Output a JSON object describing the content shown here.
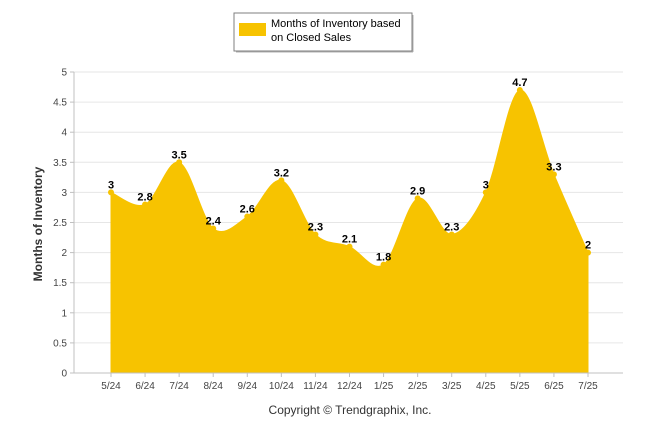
{
  "chart_data": {
    "type": "area",
    "categories": [
      "5/24",
      "6/24",
      "7/24",
      "8/24",
      "9/24",
      "10/24",
      "11/24",
      "12/24",
      "1/25",
      "2/25",
      "3/25",
      "4/25",
      "5/25",
      "6/25",
      "7/25"
    ],
    "series": [
      {
        "name": "Months of Inventory based on Closed Sales",
        "values": [
          3,
          2.8,
          3.5,
          2.4,
          2.6,
          3.2,
          2.3,
          2.1,
          1.8,
          2.9,
          2.3,
          3,
          4.7,
          3.3,
          2
        ],
        "data_labels": [
          "3",
          "2.8",
          "3.5",
          "2.4",
          "2.6",
          "3.2",
          "2.3",
          "2.1",
          "1.8",
          "2.9",
          "2.3",
          "3",
          "4.7",
          "3.3",
          "2"
        ],
        "color": "#f7c300"
      }
    ],
    "ylabel": "Months of Inventory",
    "xlabel": "",
    "ylim": [
      0,
      5
    ],
    "yticks": [
      0,
      0.5,
      1,
      1.5,
      2,
      2.5,
      3,
      3.5,
      4,
      4.5,
      5
    ],
    "ytick_labels": [
      "0",
      "0.5",
      "1",
      "1.5",
      "2",
      "2.5",
      "3",
      "3.5",
      "4",
      "4.5",
      "5"
    ],
    "grid": true,
    "legend": {
      "position": "top-center",
      "lines": [
        "Months of Inventory based",
        "on Closed Sales"
      ]
    }
  },
  "footer": {
    "copyright": "Copyright © Trendgraphix, Inc."
  },
  "colors": {
    "area": "#f7c300",
    "grid": "#e6e6e6",
    "axis": "#c0c0c0"
  }
}
